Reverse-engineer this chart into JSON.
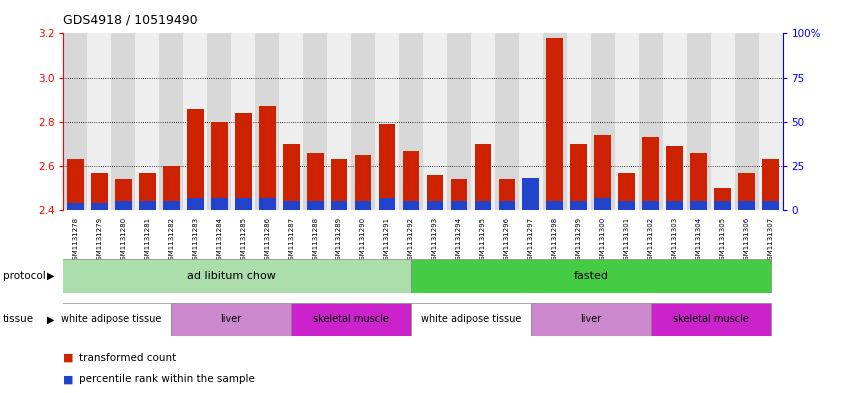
{
  "title": "GDS4918 / 10519490",
  "samples": [
    "GSM1131278",
    "GSM1131279",
    "GSM1131280",
    "GSM1131281",
    "GSM1131282",
    "GSM1131283",
    "GSM1131284",
    "GSM1131285",
    "GSM1131286",
    "GSM1131287",
    "GSM1131288",
    "GSM1131289",
    "GSM1131290",
    "GSM1131291",
    "GSM1131292",
    "GSM1131293",
    "GSM1131294",
    "GSM1131295",
    "GSM1131296",
    "GSM1131297",
    "GSM1131298",
    "GSM1131299",
    "GSM1131300",
    "GSM1131301",
    "GSM1131302",
    "GSM1131303",
    "GSM1131304",
    "GSM1131305",
    "GSM1131306",
    "GSM1131307"
  ],
  "red_values": [
    2.63,
    2.57,
    2.54,
    2.57,
    2.6,
    2.86,
    2.8,
    2.84,
    2.87,
    2.7,
    2.66,
    2.63,
    2.65,
    2.79,
    2.67,
    2.56,
    2.54,
    2.7,
    2.54,
    2.52,
    3.18,
    2.7,
    2.74,
    2.57,
    2.73,
    2.69,
    2.66,
    2.5,
    2.57,
    2.63
  ],
  "blue_values_pct": [
    4,
    4,
    5,
    5,
    5,
    7,
    7,
    7,
    7,
    5,
    5,
    5,
    5,
    7,
    5,
    5,
    5,
    5,
    5,
    18,
    5,
    5,
    7,
    5,
    5,
    5,
    5,
    5,
    5,
    5
  ],
  "ylim_left": [
    2.4,
    3.2
  ],
  "ylim_right": [
    0,
    100
  ],
  "yticks_left": [
    2.4,
    2.6,
    2.8,
    3.0,
    3.2
  ],
  "yticks_right": [
    0,
    25,
    50,
    75,
    100
  ],
  "ytick_labels_right": [
    "0",
    "25",
    "50",
    "75",
    "100%"
  ],
  "bar_color_red": "#cc2200",
  "bar_color_blue": "#2244cc",
  "col_bg_even": "#d8d8d8",
  "col_bg_odd": "#eeeeee",
  "protocol_groups": [
    {
      "label": "ad libitum chow",
      "start": 0,
      "end": 14,
      "color": "#aaddaa"
    },
    {
      "label": "fasted",
      "start": 15,
      "end": 29,
      "color": "#44cc44"
    }
  ],
  "tissue_groups": [
    {
      "label": "white adipose tissue",
      "start": 0,
      "end": 4,
      "color": "#ffffff"
    },
    {
      "label": "liver",
      "start": 5,
      "end": 9,
      "color": "#cc88cc"
    },
    {
      "label": "skeletal muscle",
      "start": 10,
      "end": 14,
      "color": "#cc22cc"
    },
    {
      "label": "white adipose tissue",
      "start": 15,
      "end": 19,
      "color": "#ffffff"
    },
    {
      "label": "liver",
      "start": 20,
      "end": 24,
      "color": "#cc88cc"
    },
    {
      "label": "skeletal muscle",
      "start": 25,
      "end": 29,
      "color": "#cc22cc"
    }
  ],
  "legend_red_label": "transformed count",
  "legend_blue_label": "percentile rank within the sample"
}
